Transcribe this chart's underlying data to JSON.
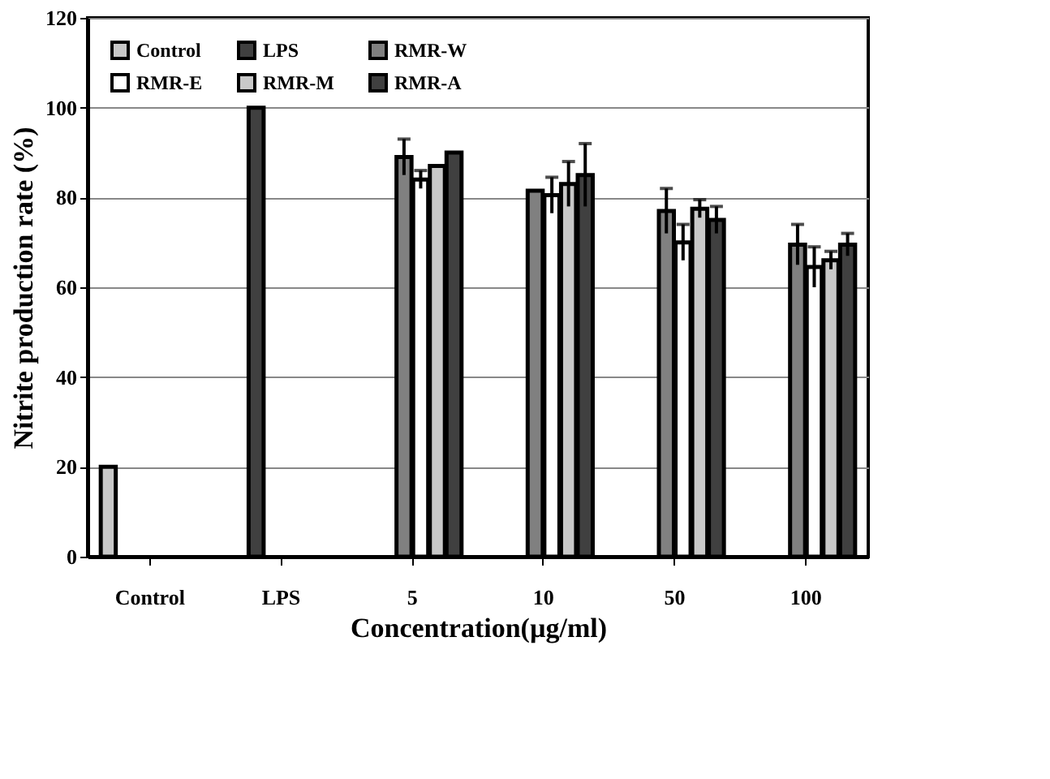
{
  "chart_data": {
    "type": "bar",
    "xlabel": "Concentration(µg/ml)",
    "ylabel": "Nitrite production rate (%)",
    "categories": [
      "Control",
      "LPS",
      "5",
      "10",
      "50",
      "100"
    ],
    "series": [
      {
        "name": "Control",
        "color": "#c8c8c8",
        "values": [
          20,
          null,
          null,
          null,
          null,
          null
        ]
      },
      {
        "name": "LPS",
        "color": "#404040",
        "values": [
          null,
          100,
          null,
          null,
          null,
          null
        ]
      },
      {
        "name": "RMR-W",
        "color": "#808080",
        "values": [
          null,
          null,
          89,
          81.5,
          77,
          69.5
        ],
        "errors": [
          null,
          null,
          4,
          null,
          5,
          4.5
        ]
      },
      {
        "name": "RMR-E",
        "color": "#ffffff",
        "values": [
          null,
          null,
          84,
          80.5,
          70,
          64.5
        ],
        "errors": [
          null,
          null,
          2,
          4,
          4,
          4.5
        ]
      },
      {
        "name": "RMR-M",
        "color": "#c8c8c8",
        "values": [
          null,
          null,
          87,
          83,
          77.5,
          66
        ],
        "errors": [
          null,
          null,
          null,
          5,
          2,
          2
        ]
      },
      {
        "name": "RMR-A",
        "color": "#404040",
        "values": [
          null,
          null,
          90,
          85,
          75,
          69.5
        ],
        "errors": [
          null,
          null,
          null,
          7,
          3,
          2.5
        ]
      }
    ],
    "ylim": [
      0,
      120
    ],
    "yticks": [
      0,
      20,
      40,
      60,
      80,
      100,
      120
    ],
    "grid": "y",
    "legend": "top left"
  }
}
